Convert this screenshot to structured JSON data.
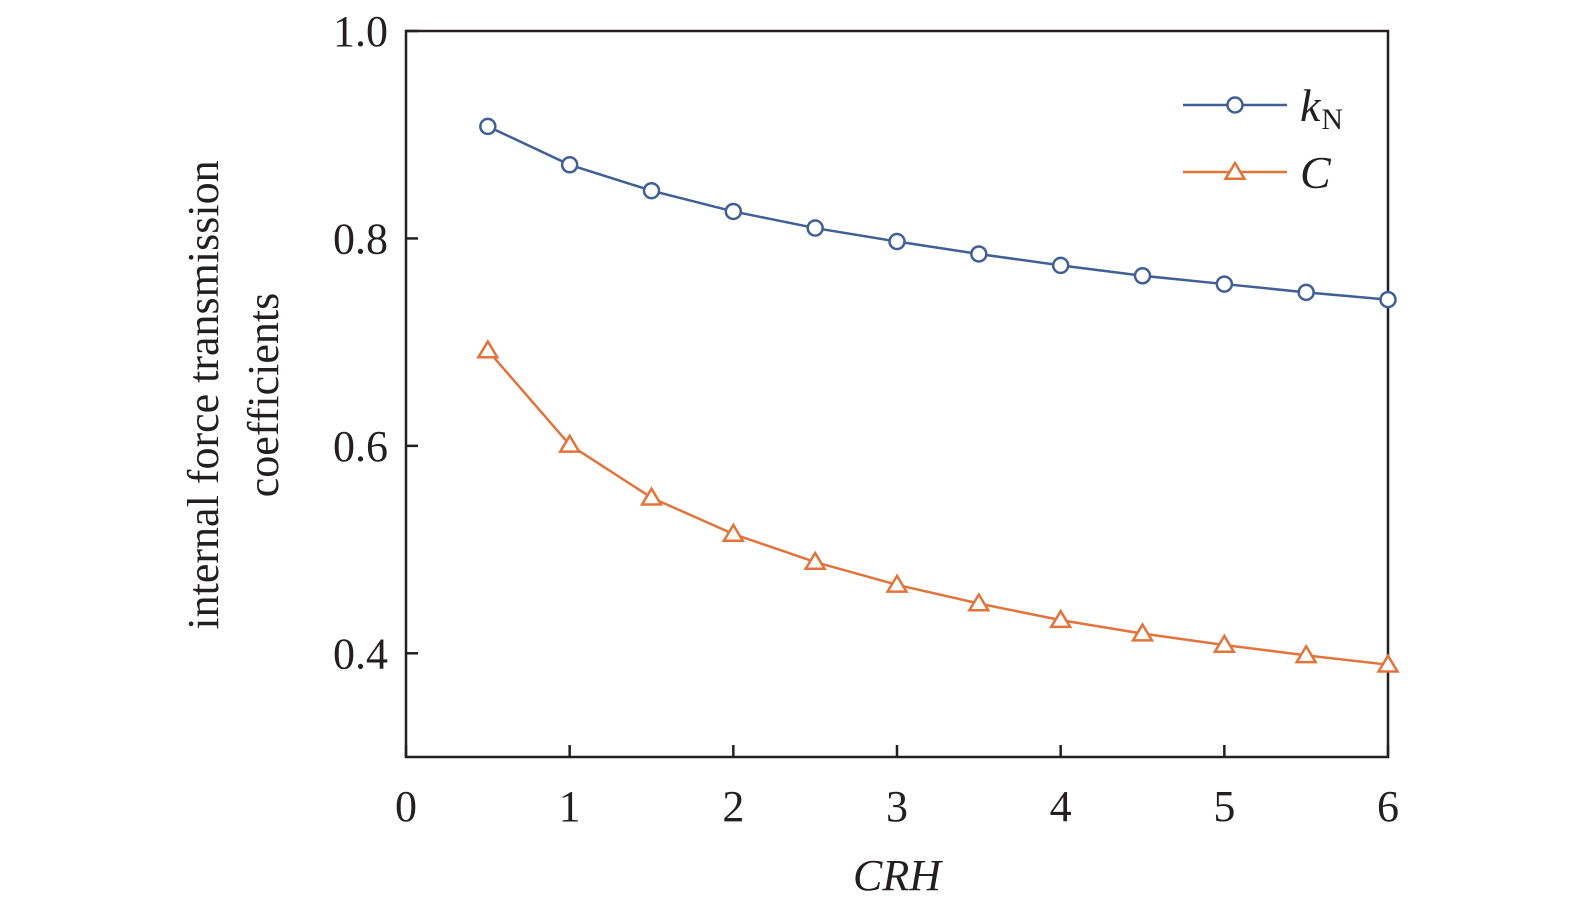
{
  "chart_data": {
    "type": "line",
    "title": "",
    "xlabel": "CRH",
    "ylabel_line1": "internal force transmission",
    "ylabel_line2": "coefficients",
    "xlim": [
      0,
      6
    ],
    "ylim": [
      0.3,
      1.0
    ],
    "x_ticks": [
      "0",
      "1",
      "2",
      "3",
      "4",
      "5",
      "6"
    ],
    "y_ticks": [
      "0.4",
      "0.6",
      "0.8",
      "1.0"
    ],
    "x": [
      0.5,
      1.0,
      1.5,
      2.0,
      2.5,
      3.0,
      3.5,
      4.0,
      4.5,
      5.0,
      5.5,
      6.0
    ],
    "grid": false,
    "legend_position": "top-right",
    "series": [
      {
        "name": "k",
        "name_sub": "N",
        "color": "#3f5f95",
        "marker": "circle",
        "values": [
          0.908,
          0.871,
          0.846,
          0.826,
          0.81,
          0.797,
          0.785,
          0.774,
          0.764,
          0.756,
          0.748,
          0.741
        ]
      },
      {
        "name": "C",
        "name_sub": "",
        "color": "#e2733a",
        "marker": "triangle",
        "values": [
          0.692,
          0.601,
          0.55,
          0.515,
          0.488,
          0.466,
          0.448,
          0.432,
          0.419,
          0.408,
          0.398,
          0.389
        ]
      }
    ]
  }
}
